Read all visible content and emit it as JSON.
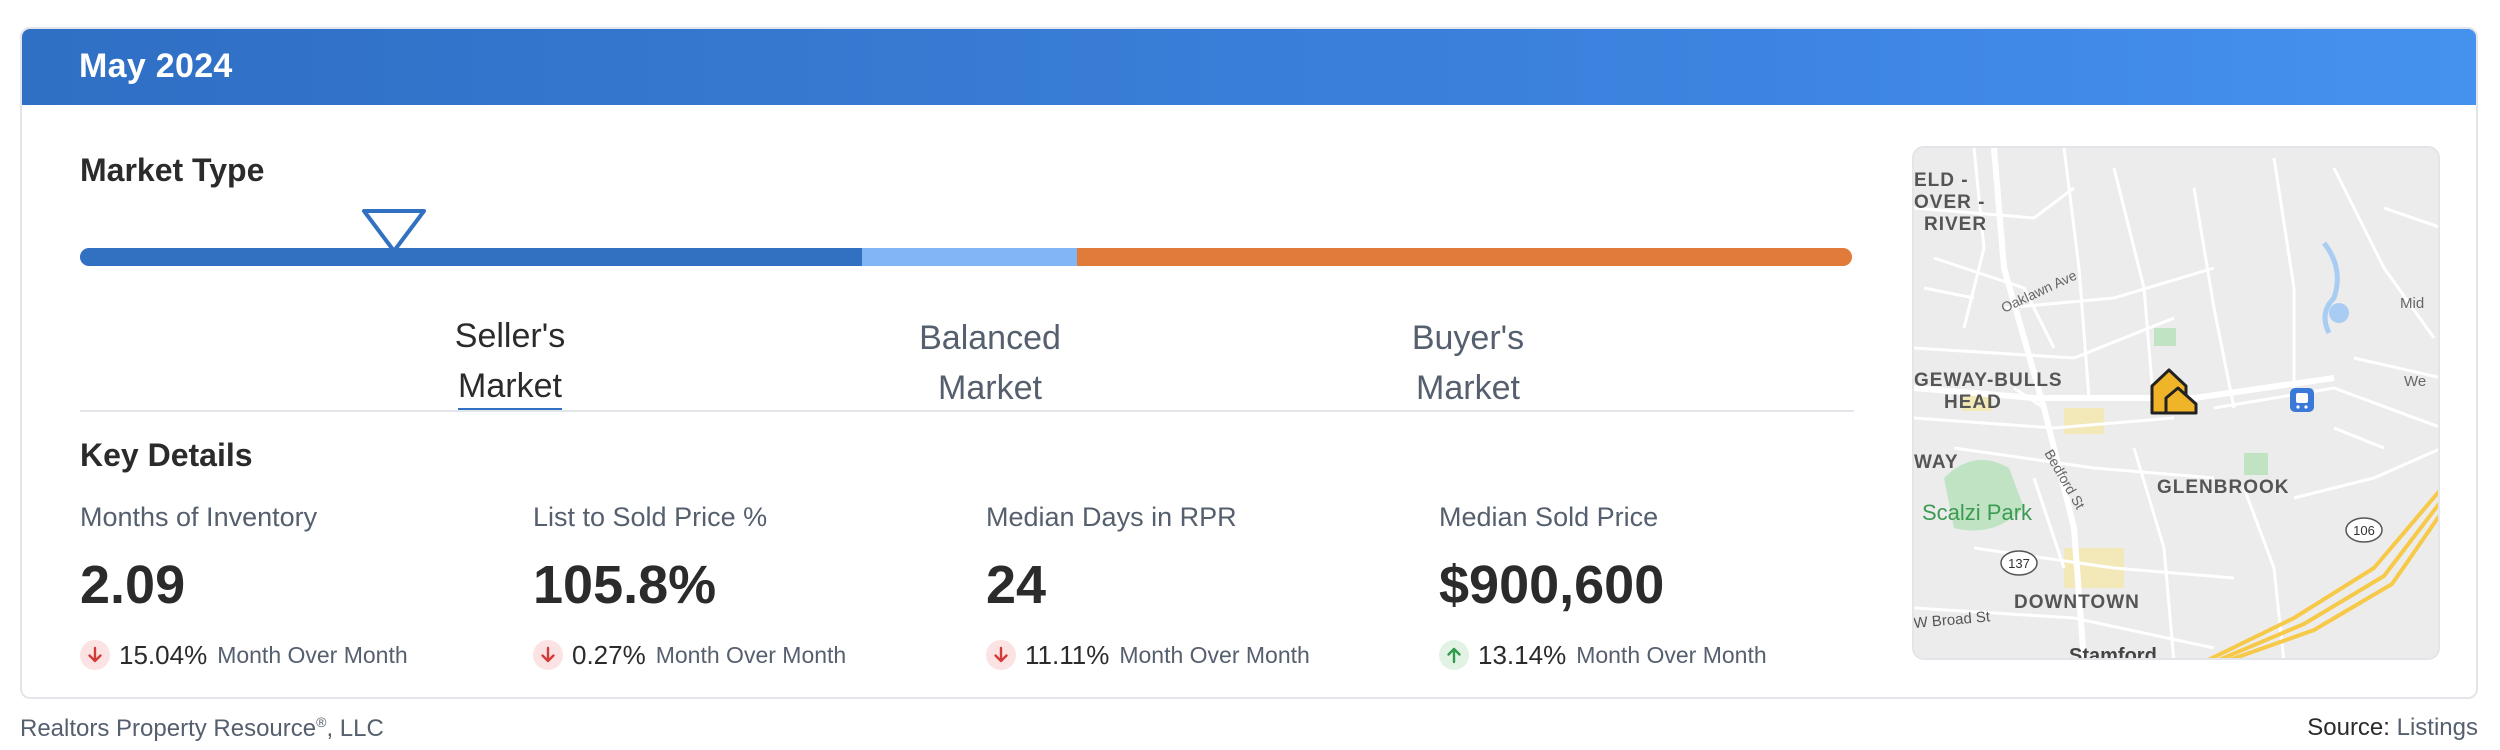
{
  "header": {
    "title": "May 2024"
  },
  "market_type": {
    "title": "Market Type",
    "seller": {
      "line1": "Seller's",
      "line2": "Market"
    },
    "balanced": {
      "line1": "Balanced",
      "line2": "Market"
    },
    "buyer": {
      "line1": "Buyer's",
      "line2": "Market"
    },
    "active": "seller",
    "colors": {
      "seller": "#3270c2",
      "balanced": "#7fb6f3",
      "buyer": "#e07b39"
    }
  },
  "key_details": {
    "title": "Key Details",
    "metrics": [
      {
        "label": "Months of Inventory",
        "value": "2.09",
        "change": "15.04%",
        "direction": "down",
        "period": "Month Over Month"
      },
      {
        "label": "List to Sold Price %",
        "value": "105.8%",
        "change": "0.27%",
        "direction": "down",
        "period": "Month Over Month"
      },
      {
        "label": "Median Days in RPR",
        "value": "24",
        "change": "11.11%",
        "direction": "down",
        "period": "Month Over Month"
      },
      {
        "label": "Median Sold Price",
        "value": "$900,600",
        "change": "13.14%",
        "direction": "up",
        "period": "Month Over Month"
      }
    ]
  },
  "map": {
    "labels": {
      "field_over_river_1": "ELD -",
      "field_over_river_2": "OVER -",
      "field_over_river_3": "RIVER",
      "oaklawn": "Oaklawn Ave",
      "ridgeway_1": "GEWAY-BULLS",
      "ridgeway_2": "HEAD",
      "way": "WAY",
      "scalzi": "Scalzi Park",
      "bedford": "Bedford St",
      "glenbrook": "GLENBROOK",
      "route_137": "137",
      "route_106": "106",
      "downtown": "DOWNTOWN",
      "broad": "W Broad St",
      "stamford": "Stamford",
      "mid": "Mid",
      "we": "We"
    }
  },
  "footer": {
    "company": "Realtors Property Resource",
    "reg_mark": "®",
    "company_suffix": ", LLC",
    "source_label": "Source:",
    "source_value": "Listings"
  }
}
